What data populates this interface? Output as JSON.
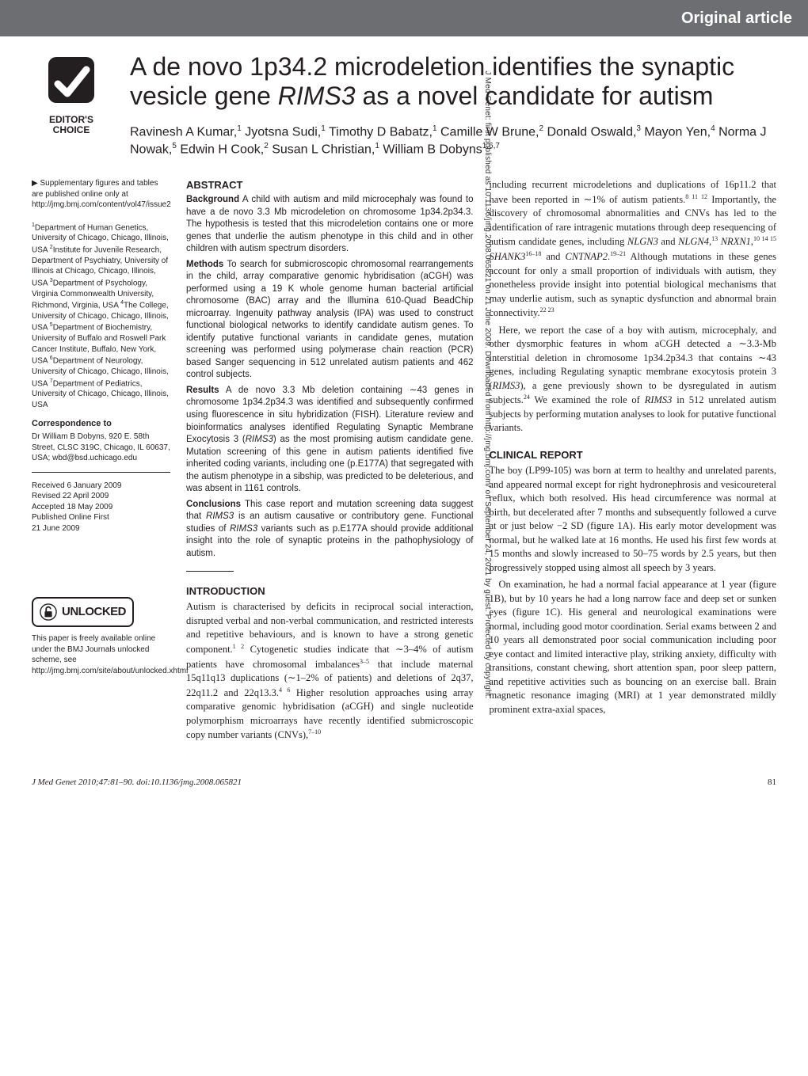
{
  "header": {
    "category": "Original article",
    "badge_line1": "EDITOR'S",
    "badge_line2": "CHOICE",
    "title": "A de novo 1p34.2 microdeletion identifies the synaptic vesicle gene <em>RIMS3</em> as a novel candidate for autism",
    "authors": "Ravinesh A Kumar,<sup>1</sup> Jyotsna Sudi,<sup>1</sup> Timothy D Babatz,<sup>1</sup> Camille W Brune,<sup>2</sup> Donald Oswald,<sup>3</sup> Mayon Yen,<sup>4</sup> Norma J Nowak,<sup>5</sup> Edwin H Cook,<sup>2</sup> Susan L Christian,<sup>1</sup> William B Dobyns<sup>1,6,7</sup>"
  },
  "sidebar": {
    "supplementary": "▶ Supplementary figures and tables are published online only at http://jmg.bmj.com/content/vol47/issue2",
    "affiliations": "<sup>1</sup>Department of Human Genetics, University of Chicago, Chicago, Illinois, USA <sup>2</sup>Institute for Juvenile Research, Department of Psychiatry, University of Illinois at Chicago, Chicago, Illinois, USA <sup>3</sup>Department of Psychology, Virginia Commonwealth University, Richmond, Virginia, USA <sup>4</sup>The College, University of Chicago, Chicago, Illinois, USA <sup>5</sup>Department of Biochemistry, University of Buffalo and Roswell Park Cancer Institute, Buffalo, New York, USA <sup>6</sup>Department of Neurology, University of Chicago, Chicago, Illinois, USA <sup>7</sup>Department of Pediatrics, University of Chicago, Chicago, Illinois, USA",
    "correspondence_heading": "Correspondence to",
    "correspondence": "Dr William B Dobyns, 920 E. 58th Street, CLSC 319C, Chicago, IL 60637, USA; wbd@bsd.uchicago.edu",
    "dates": "Received 6 January 2009\nRevised 22 April 2009\nAccepted 18 May 2009\nPublished Online First\n21 June 2009",
    "unlocked_label": "UNLOCKED",
    "unlocked_text": "This paper is freely available online under the BMJ Journals unlocked scheme, see http://jmg.bmj.com/site/about/unlocked.xhtml"
  },
  "abstract": {
    "heading": "ABSTRACT",
    "background": "<strong>Background</strong> A child with autism and mild microcephaly was found to have a de novo 3.3 Mb microdeletion on chromosome 1p34.2p34.3. The hypothesis is tested that this microdeletion contains one or more genes that underlie the autism phenotype in this child and in other children with autism spectrum disorders.",
    "methods": "<strong>Methods</strong> To search for submicroscopic chromosomal rearrangements in the child, array comparative genomic hybridisation (aCGH) was performed using a 19 K whole genome human bacterial artificial chromosome (BAC) array and the Illumina 610-Quad BeadChip microarray. Ingenuity pathway analysis (IPA) was used to construct functional biological networks to identify candidate autism genes. To identify putative functional variants in candidate genes, mutation screening was performed using polymerase chain reaction (PCR) based Sanger sequencing in 512 unrelated autism patients and 462 control subjects.",
    "results": "<strong>Results</strong> A de novo 3.3 Mb deletion containing ∼43 genes in chromosome 1p34.2p34.3 was identified and subsequently confirmed using fluorescence in situ hybridization (FISH). Literature review and bioinformatics analyses identified Regulating Synaptic Membrane Exocytosis 3 (<em>RIMS3</em>) as the most promising autism candidate gene. Mutation screening of this gene in autism patients identified five inherited coding variants, including one (p.E177A) that segregated with the autism phenotype in a sibship, was predicted to be deleterious, and was absent in 1161 controls.",
    "conclusions": "<strong>Conclusions</strong> This case report and mutation screening data suggest that <em>RIMS3</em> is an autism causative or contributory gene. Functional studies of <em>RIMS3</em> variants such as p.E177A should provide additional insight into the role of synaptic proteins in the pathophysiology of autism."
  },
  "introduction": {
    "heading": "INTRODUCTION",
    "p1": "Autism is characterised by deficits in reciprocal social interaction, disrupted verbal and non-verbal communication, and restricted interests and repetitive behaviours, and is known to have a strong genetic component.<sup>1 2</sup> Cytogenetic studies indicate that ∼3–4% of autism patients have chromosomal imbalances<sup>3–5</sup> that include maternal 15q11q13 duplications (∼1–2% of patients) and deletions of 2q37, 22q11.2 and 22q13.3.<sup>4 6</sup> Higher resolution approaches using array comparative genomic hybridisation (aCGH) and single nucleotide polymorphism microarrays have recently identified submicroscopic copy number variants (CNVs),<sup>7–10</sup>"
  },
  "body_right": {
    "p1": "including recurrent microdeletions and duplications of 16p11.2 that have been reported in ∼1% of autism patients.<sup>8 11 12</sup> Importantly, the discovery of chromosomal abnormalities and CNVs has led to the identification of rare intragenic mutations through deep resequencing of autism candidate genes, including <em>NLGN3</em> and <em>NLGN4</em>,<sup>13</sup> <em>NRXN1</em>,<sup>10 14 15</sup> <em>SHANK3</em><sup>16–18</sup> and <em>CNTNAP2</em>.<sup>19–21</sup> Although mutations in these genes account for only a small proportion of individuals with autism, they nonetheless provide insight into potential biological mechanisms that may underlie autism, such as synaptic dysfunction and abnormal brain connectivity.<sup>22 23</sup>",
    "p2": "Here, we report the case of a boy with autism, microcephaly, and other dysmorphic features in whom aCGH detected a ∼3.3-Mb interstitial deletion in chromosome 1p34.2p34.3 that contains ∼43 genes, including Regulating synaptic membrane exocytosis protein 3 (<em>RIMS3</em>), a gene previously shown to be dysregulated in autism subjects.<sup>24</sup> We examined the role of <em>RIMS3</em> in 512 unrelated autism subjects by performing mutation analyses to look for putative functional variants."
  },
  "clinical": {
    "heading": "CLINICAL REPORT",
    "p1": "The boy (LP99-105) was born at term to healthy and unrelated parents, and appeared normal except for right hydronephrosis and vesicoureteral reflux, which both resolved. His head circumference was normal at birth, but decelerated after 7 months and subsequently followed a curve at or just below −2 SD (figure 1A). His early motor development was normal, but he walked late at 16 months. He used his first few words at 15 months and slowly increased to 50–75 words by 2.5 years, but then progressively stopped using almost all speech by 3 years.",
    "p2": "On examination, he had a normal facial appearance at 1 year (figure 1B), but by 10 years he had a long narrow face and deep set or sunken eyes (figure 1C). His general and neurological examinations were normal, including good motor coordination. Serial exams between 2 and 10 years all demonstrated poor social communication including poor eye contact and limited interactive play, striking anxiety, difficulty with transitions, constant chewing, short attention span, poor sleep pattern, and repetitive activities such as bouncing on an exercise ball. Brain magnetic resonance imaging (MRI) at 1 year demonstrated mildly prominent extra-axial spaces,"
  },
  "footer": {
    "citation": "J Med Genet 2010;47:81–90. doi:10.1136/jmg.2008.065821",
    "page": "81"
  },
  "watermark": "J Med Genet: first published as 10.1136/jmg.2008.065821 on 21 June 2009. Downloaded from http://jmg.bmj.com/ on September 24, 2021 by guest. Protected by copyright.",
  "colors": {
    "top_bar_bg": "#6d6e71",
    "top_bar_text": "#ffffff",
    "body_text": "#231f20",
    "page_bg": "#ffffff"
  }
}
